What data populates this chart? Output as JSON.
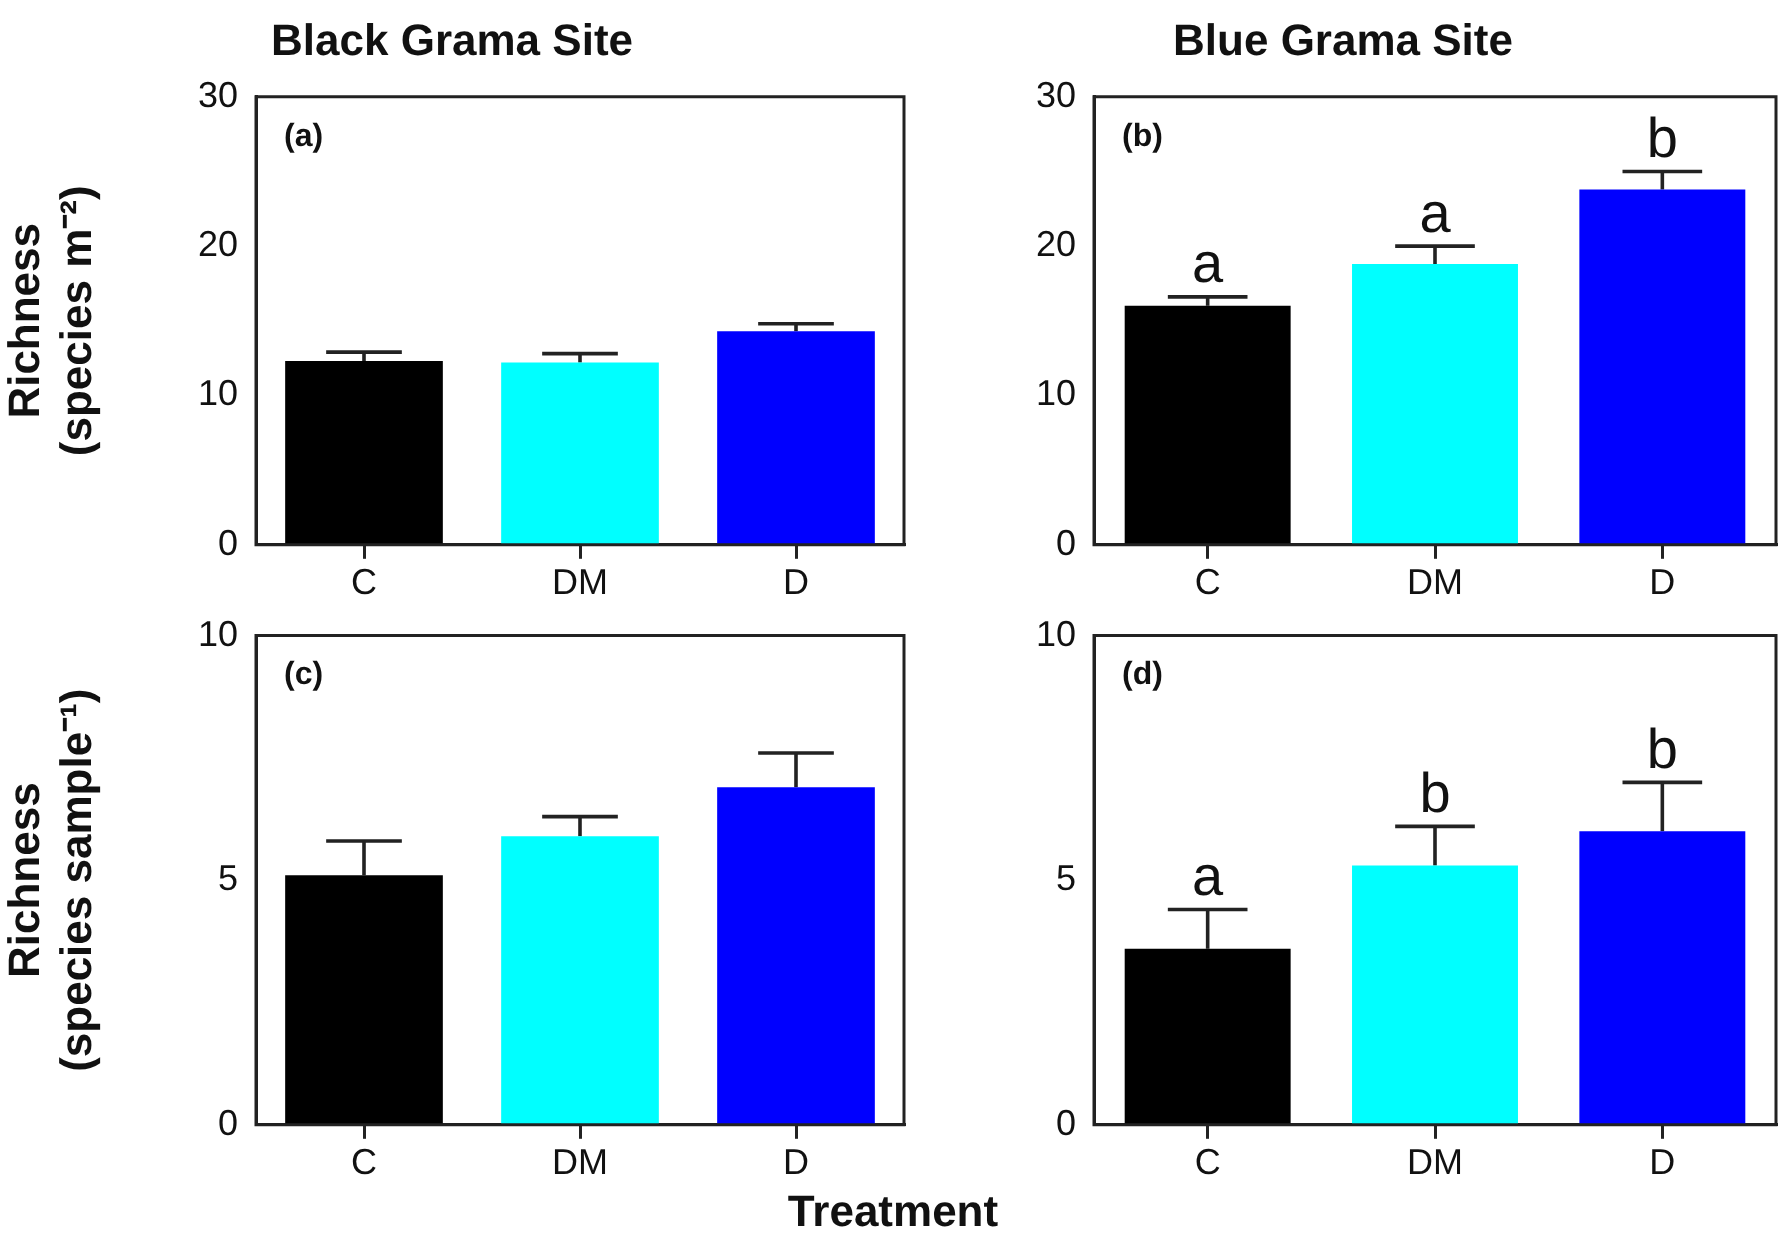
{
  "chart_data": [
    {
      "type": "bar",
      "title": "Black Grama Site",
      "ylabel": "Richness\n(species m⁻²)",
      "categories": [
        "C",
        "DM",
        "D"
      ],
      "values": [
        12.3,
        12.2,
        14.3
      ],
      "errors": [
        [
          12.3,
          12.9
        ],
        [
          12.2,
          12.8
        ],
        [
          14.3,
          14.8
        ]
      ],
      "colors": [
        "#000000",
        "#00ffff",
        "#0000ff"
      ],
      "ylim": [
        0,
        30
      ],
      "yticks": [
        0,
        10,
        20,
        30
      ],
      "annotations": [
        "(a)"
      ]
    },
    {
      "type": "bar",
      "title": "Blue Grama Site",
      "categories": [
        "C",
        "DM",
        "D"
      ],
      "values": [
        16.0,
        18.8,
        23.8
      ],
      "errors": [
        [
          16.0,
          16.6
        ],
        [
          18.8,
          20.0
        ],
        [
          23.8,
          25.0
        ]
      ],
      "colors": [
        "#000000",
        "#00ffff",
        "#0000ff"
      ],
      "ylim": [
        0,
        30
      ],
      "yticks": [
        0,
        10,
        20,
        30
      ],
      "annotations": [
        "(b)",
        {
          "text": "a",
          "x": "C",
          "y": 16.6
        },
        {
          "text": "a",
          "x": "DM",
          "y": 20.0
        },
        {
          "text": "b",
          "x": "D",
          "y": 25.0
        }
      ]
    },
    {
      "type": "bar",
      "xlabel": "Treatment",
      "ylabel": "Richness\n(species sample⁻¹)",
      "categories": [
        "C",
        "DM",
        "D"
      ],
      "values": [
        5.1,
        5.9,
        6.9
      ],
      "errors": [
        [
          5.1,
          5.8
        ],
        [
          5.9,
          6.3
        ],
        [
          6.9,
          7.6
        ]
      ],
      "colors": [
        "#000000",
        "#00ffff",
        "#0000ff"
      ],
      "ylim": [
        0,
        10
      ],
      "yticks": [
        0,
        5,
        10
      ],
      "annotations": [
        "(c)"
      ]
    },
    {
      "type": "bar",
      "categories": [
        "C",
        "DM",
        "D"
      ],
      "values": [
        3.6,
        5.3,
        6.0
      ],
      "errors": [
        [
          3.6,
          4.4
        ],
        [
          5.3,
          6.1
        ],
        [
          6.0,
          7.0
        ]
      ],
      "colors": [
        "#000000",
        "#00ffff",
        "#0000ff"
      ],
      "ylim": [
        0,
        10
      ],
      "yticks": [
        0,
        5,
        10
      ],
      "annotations": [
        "(d)",
        {
          "text": "a",
          "x": "C",
          "y": 4.4
        },
        {
          "text": "b",
          "x": "DM",
          "y": 6.1
        },
        {
          "text": "b",
          "x": "D",
          "y": 7.0
        }
      ]
    }
  ]
}
